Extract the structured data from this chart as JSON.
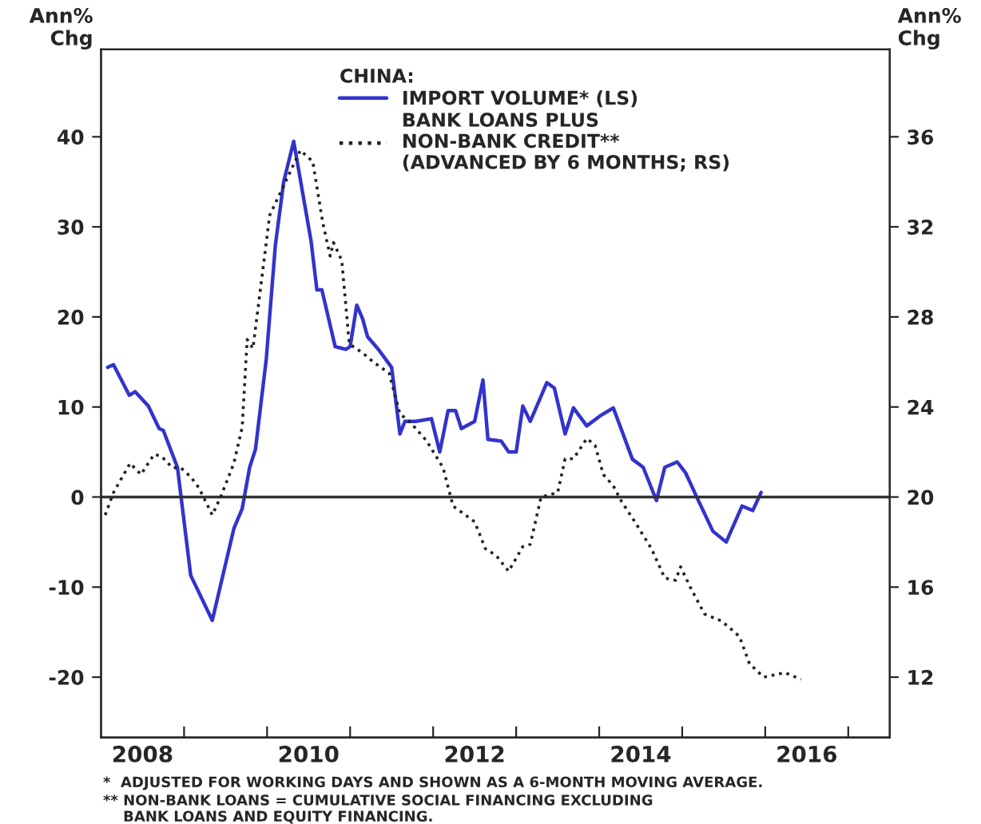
{
  "chart_data": {
    "type": "line",
    "ylabel": "Ann%\nChg",
    "y2label": "Ann%\nChg",
    "legend_title": "CHINA:",
    "series": [
      {
        "name": "IMPORT VOLUME* (LS)",
        "color": "#3333cc",
        "line_style": "solid",
        "x": [
          2008.08,
          2008.15,
          2008.34,
          2008.41,
          2008.57,
          2008.7,
          2008.75,
          2008.92,
          2009.08,
          2009.34,
          2009.6,
          2009.7,
          2009.79,
          2009.86,
          2009.99,
          2010.1,
          2010.2,
          2010.32,
          2010.53,
          2010.6,
          2010.66,
          2010.82,
          2010.95,
          2011.0,
          2011.08,
          2011.15,
          2011.21,
          2011.34,
          2011.5,
          2011.6,
          2011.66,
          2011.79,
          2011.98,
          2012.08,
          2012.18,
          2012.27,
          2012.34,
          2012.5,
          2012.6,
          2012.66,
          2012.82,
          2012.91,
          2013.0,
          2013.08,
          2013.17,
          2013.37,
          2013.46,
          2013.59,
          2013.69,
          2013.85,
          2014.01,
          2014.17,
          2014.4,
          2014.53,
          2014.69,
          2014.79,
          2014.94,
          2015.04,
          2015.18,
          2015.37,
          2015.53,
          2015.72,
          2015.85,
          2015.95
        ],
        "values": [
          14.4,
          14.7,
          11.3,
          11.7,
          10.1,
          7.6,
          7.4,
          3.3,
          -8.7,
          -13.7,
          -3.5,
          -1.3,
          3.3,
          5.3,
          15.3,
          28,
          35,
          39.5,
          28.4,
          23,
          23,
          16.7,
          16.4,
          16.7,
          21.3,
          19.8,
          17.8,
          16.4,
          14.4,
          7.0,
          8.4,
          8.4,
          8.7,
          5.0,
          9.6,
          9.6,
          7.6,
          8.4,
          13.0,
          6.4,
          6.2,
          5.0,
          5.0,
          10.1,
          8.4,
          12.7,
          12.1,
          7.0,
          9.9,
          7.9,
          9.0,
          9.9,
          4.2,
          3.3,
          -0.4,
          3.3,
          3.9,
          2.7,
          -0.1,
          -3.8,
          -5.0,
          -1.0,
          -1.5,
          0.5
        ]
      },
      {
        "name": "BANK LOANS PLUS\nNON-BANK CREDIT**\n(ADVANCED BY 6 MONTHS; RS)",
        "color": "#222222",
        "line_style": "dotted",
        "axis": "y2",
        "x": [
          2008.05,
          2008.15,
          2008.35,
          2008.48,
          2008.64,
          2008.73,
          2008.86,
          2008.96,
          2009.08,
          2009.18,
          2009.34,
          2009.44,
          2009.6,
          2009.7,
          2009.76,
          2009.83,
          2009.99,
          2010.03,
          2010.4,
          2010.55,
          2010.67,
          2010.76,
          2010.8,
          2010.9,
          2010.99,
          2011.15,
          2011.28,
          2011.47,
          2011.6,
          2011.73,
          2011.92,
          2012.12,
          2012.24,
          2012.5,
          2012.63,
          2012.76,
          2012.91,
          2013.08,
          2013.17,
          2013.3,
          2013.5,
          2013.59,
          2013.69,
          2013.85,
          2013.95,
          2014.05,
          2014.17,
          2014.27,
          2014.43,
          2014.63,
          2014.79,
          2014.92,
          2014.98,
          2015.11,
          2015.27,
          2015.47,
          2015.6,
          2015.69,
          2015.81,
          2015.98,
          2016.11,
          2016.24,
          2016.43
        ],
        "values": [
          19.2,
          20.2,
          21.5,
          21.0,
          21.9,
          21.8,
          21.3,
          21.3,
          20.9,
          20.4,
          19.2,
          20.0,
          21.5,
          23.1,
          27.0,
          26.6,
          31.3,
          32.5,
          35.4,
          34.9,
          32.2,
          30.7,
          31.3,
          30.5,
          26.8,
          26.4,
          26.0,
          25.5,
          23.7,
          23.3,
          22.5,
          21.3,
          19.6,
          18.9,
          17.7,
          17.4,
          16.7,
          17.8,
          17.9,
          20.0,
          20.2,
          21.7,
          21.7,
          22.6,
          22.3,
          21.0,
          20.5,
          19.8,
          18.9,
          17.7,
          16.4,
          16.3,
          16.9,
          15.9,
          14.8,
          14.5,
          14.1,
          13.8,
          12.6,
          12.0,
          12.1,
          12.2,
          11.9
        ]
      }
    ],
    "xlim": [
      2008,
      2017.5
    ],
    "xticks": [
      {
        "value": 2008.5,
        "label": "2008"
      },
      {
        "value": 2009,
        "label": null
      },
      {
        "value": 2010,
        "label": null
      },
      {
        "value": 2010.5,
        "label": "2010"
      },
      {
        "value": 2011,
        "label": null
      },
      {
        "value": 2012,
        "label": null
      },
      {
        "value": 2012.5,
        "label": "2012"
      },
      {
        "value": 2013,
        "label": null
      },
      {
        "value": 2014,
        "label": null
      },
      {
        "value": 2014.5,
        "label": "2014"
      },
      {
        "value": 2015,
        "label": null
      },
      {
        "value": 2016,
        "label": null
      },
      {
        "value": 2016.5,
        "label": "2016"
      },
      {
        "value": 2017,
        "label": null
      }
    ],
    "ylim": [
      -26.7,
      49.7
    ],
    "yticks": [
      -20,
      -10,
      0,
      10,
      20,
      30,
      40
    ],
    "y2lim": [
      9.32,
      39.88
    ],
    "y2ticks": [
      12,
      16,
      20,
      24,
      28,
      32,
      36
    ],
    "ref_lines": [
      {
        "axis": "y",
        "value": 0,
        "label": null,
        "color": "#333333"
      }
    ],
    "grid": false,
    "legend": "top",
    "marker": "none",
    "annotations": [
      "*  ADJUSTED FOR WORKING DAYS AND SHOWN AS A 6-MONTH MOVING AVERAGE.",
      "** NON-BANK LOANS = CUMULATIVE SOCIAL FINANCING EXCLUDING\n    BANK LOANS AND EQUITY FINANCING."
    ]
  }
}
